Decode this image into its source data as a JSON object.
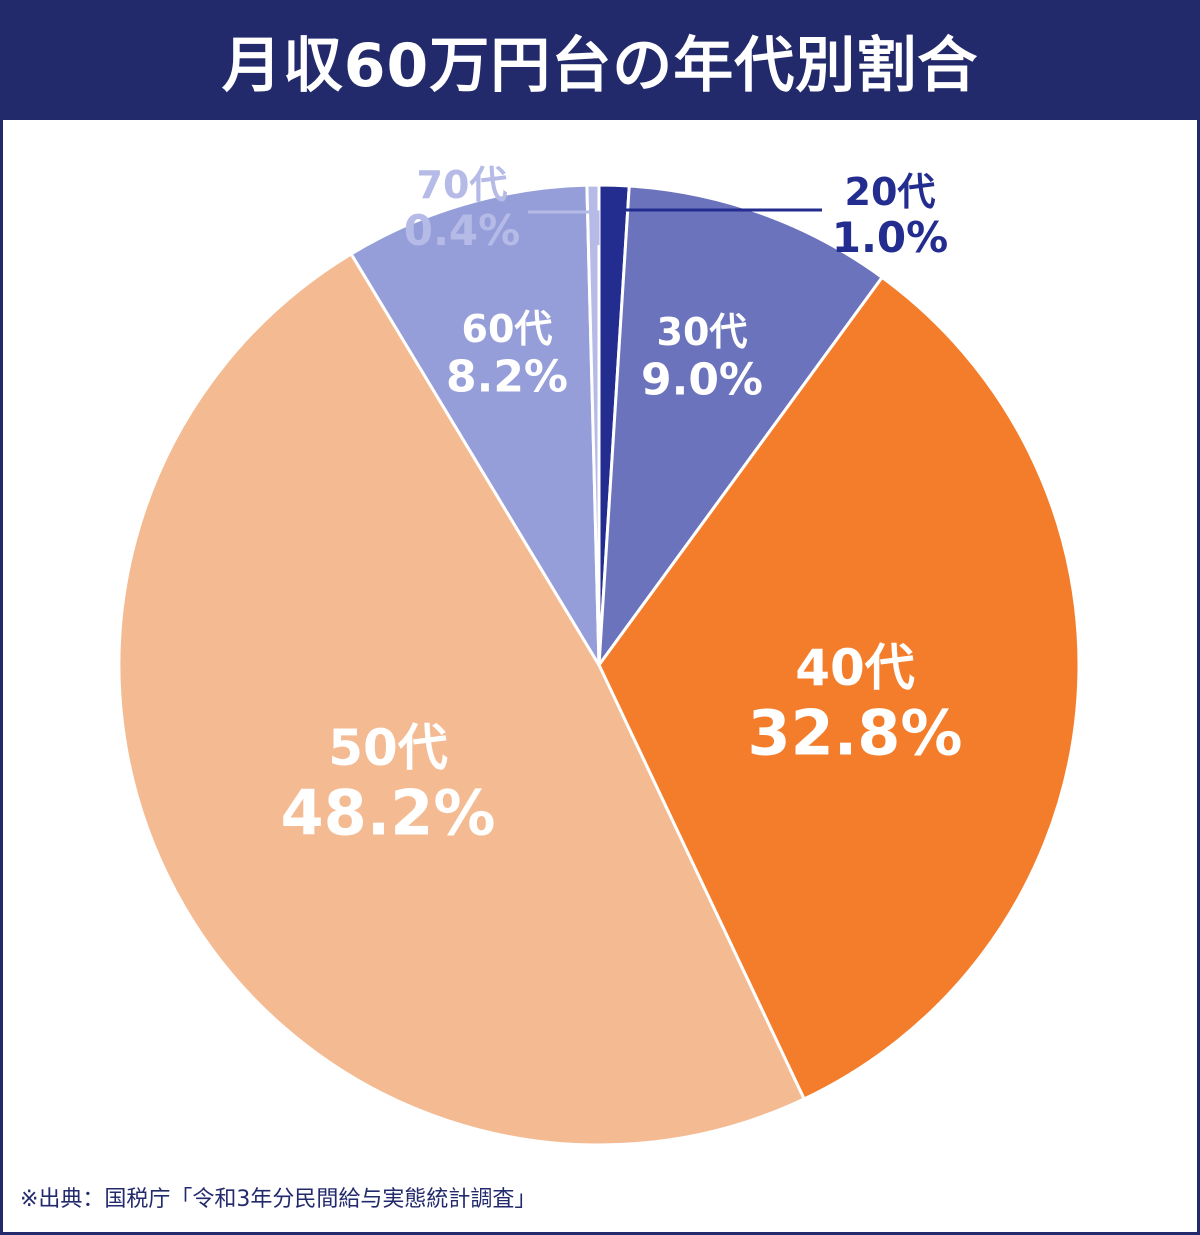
{
  "chart_data": {
    "type": "pie",
    "title": "月収60万円台の年代別割合",
    "slices": [
      {
        "label": "20代",
        "value": 1.0,
        "value_label": "1.0%",
        "color": "#232c8f"
      },
      {
        "label": "30代",
        "value": 9.0,
        "value_label": "9.0%",
        "color": "#6b73bc"
      },
      {
        "label": "40代",
        "value": 32.8,
        "value_label": "32.8%",
        "color": "#f47d2b"
      },
      {
        "label": "50代",
        "value": 48.2,
        "value_label": "48.2%",
        "color": "#f4bb93"
      },
      {
        "label": "60代",
        "value": 8.2,
        "value_label": "8.2%",
        "color": "#959ed9"
      },
      {
        "label": "70代",
        "value": 0.4,
        "value_label": "0.4%",
        "color": "#b5bbe6"
      }
    ],
    "start_angle": "12 o'clock",
    "direction": "clockwise",
    "legend": "none"
  },
  "colors": {
    "header_bg": "#222a6c",
    "header_text": "#ffffff",
    "label_light": "#ffffff"
  },
  "source": "※出典：国税庁「令和3年分民間給与実態統計調査」"
}
